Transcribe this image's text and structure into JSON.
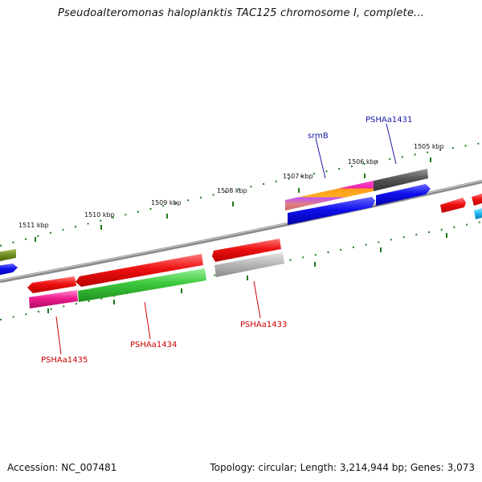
{
  "title": "Pseudoalteromonas haloplanktis TAC125 chromosome I, complete...",
  "footer": {
    "accession": "Accession: NC_007481",
    "summary": "Topology: circular; Length: 3,214,944 bp; Genes: 3,073"
  },
  "scale_labels": [
    "1511 kbp",
    "1510 kbp",
    "1509 kbp",
    "1508 kbp",
    "1507 kbp",
    "1506 kbp",
    "1505 kbp"
  ],
  "gene_labels": [
    {
      "name": "srmB",
      "color": "#1a1aa6"
    },
    {
      "name": "PSHAa1431",
      "color": "#1a1aa6"
    },
    {
      "name": "PSHAa1433",
      "color": "#cc0000"
    },
    {
      "name": "PSHAa1434",
      "color": "#cc0000"
    },
    {
      "name": "PSHAa1435",
      "color": "#cc0000"
    }
  ],
  "colors": {
    "backbone": "#8a8a8a",
    "ticks": "#1e7a1e",
    "forward_label": "#1a1aa6",
    "reverse_label": "#cc0000"
  }
}
